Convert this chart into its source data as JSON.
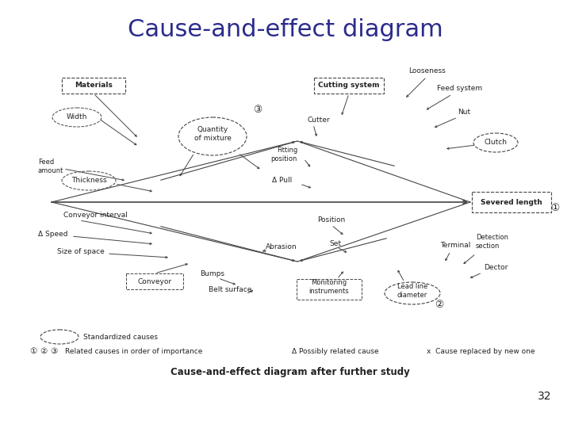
{
  "title": "Cause-and-effect diagram",
  "subtitle": "Cause-and-effect diagram after further study",
  "page_number": "32",
  "title_color": "#2b2b8c",
  "bg_color": "#ffffff",
  "line_color": "#444444",
  "text_color": "#222222"
}
